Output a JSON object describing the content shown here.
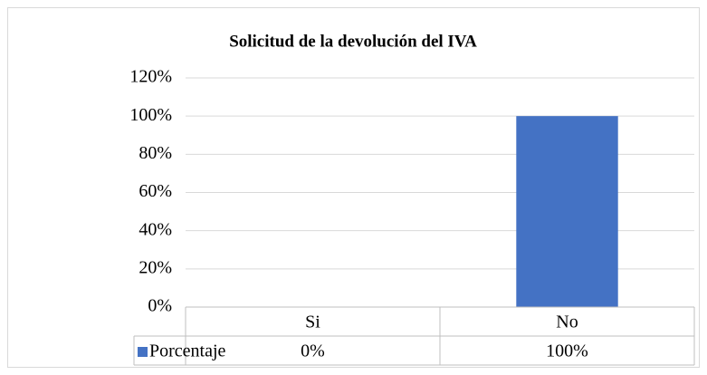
{
  "chart_data": {
    "type": "bar",
    "title": "Solicitud de la devolución del IVA",
    "categories": [
      "Si",
      "No"
    ],
    "series": [
      {
        "name": "Porcentaje",
        "color": "#4472c4",
        "values": [
          0,
          100
        ],
        "value_labels": [
          "0%",
          "100%"
        ]
      }
    ],
    "ylim": [
      0,
      120
    ],
    "yticks": [
      {
        "value": 0,
        "label": "0%"
      },
      {
        "value": 20,
        "label": "20%"
      },
      {
        "value": 40,
        "label": "40%"
      },
      {
        "value": 60,
        "label": "60%"
      },
      {
        "value": 80,
        "label": "80%"
      },
      {
        "value": 100,
        "label": "100%"
      },
      {
        "value": 120,
        "label": "120%"
      }
    ],
    "grid": true,
    "data_table": true
  }
}
